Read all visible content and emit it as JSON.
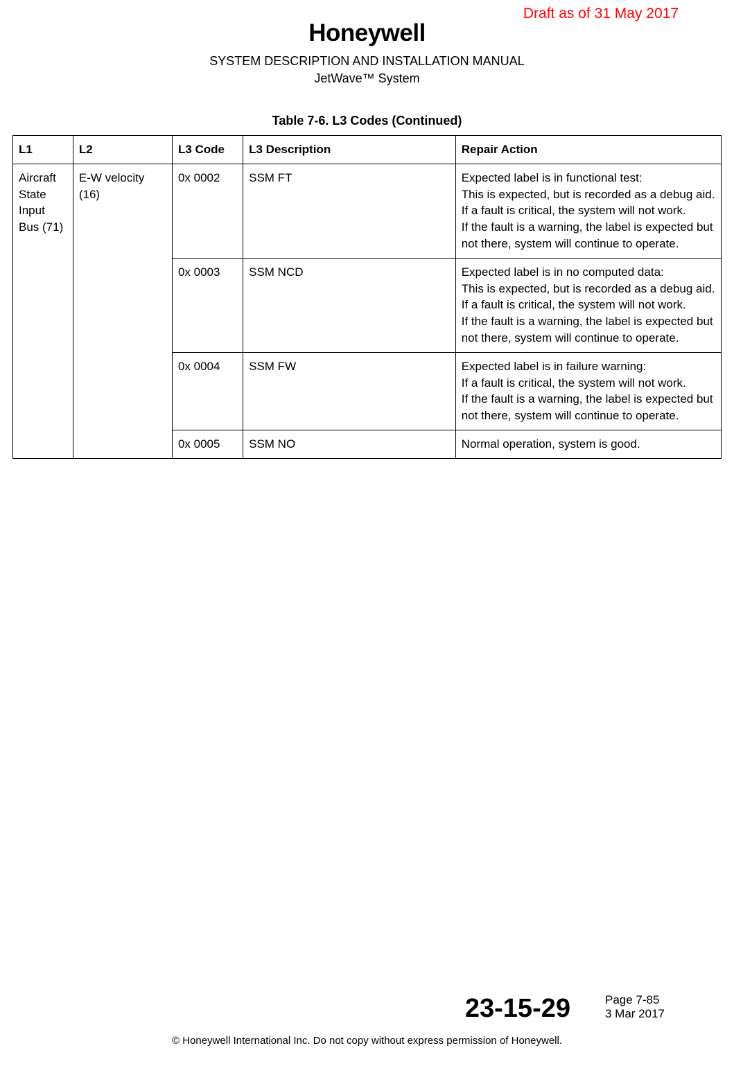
{
  "draft_label": "Draft as of 31 May 2017",
  "brand": "Honeywell",
  "doc_title": "SYSTEM DESCRIPTION AND INSTALLATION MANUAL",
  "doc_subtitle": "JetWave™ System",
  "table": {
    "caption": "Table 7-6.   L3 Codes  (Continued)",
    "headers": {
      "l1": "L1",
      "l2": "L2",
      "l3_code": "L3 Code",
      "l3_description": "L3 Description",
      "repair_action": "Repair Action"
    },
    "l1_value": "Aircraft State Input Bus (71)",
    "l2_value": "E-W velocity (16)",
    "rows": [
      {
        "code": "0x 0002",
        "desc": "SSM FT",
        "action": "Expected label is in functional test:\nThis is expected, but is recorded as a debug aid.\nIf a fault is critical, the system will not work.\nIf the fault is a warning, the label is expected but not there, system will continue to operate."
      },
      {
        "code": "0x 0003",
        "desc": "SSM NCD",
        "action": "Expected label is in no computed data:\nThis is expected, but is recorded as a debug aid.\nIf a fault is critical, the system will not work.\nIf the fault is a warning, the label is expected but not there, system will continue to operate."
      },
      {
        "code": "0x 0004",
        "desc": "SSM FW",
        "action": "Expected label is in failure warning:\nIf a fault is critical, the system will not work.\nIf the fault is a warning, the label is expected but not there, system will continue to operate."
      },
      {
        "code": "0x 0005",
        "desc": "SSM NO",
        "action": "Normal operation, system is good."
      }
    ]
  },
  "footer": {
    "ata_code": "23-15-29",
    "page_number": "Page 7-85",
    "date": "3 Mar 2017",
    "copyright": "© Honeywell International Inc. Do not copy without express permission of Honeywell."
  }
}
